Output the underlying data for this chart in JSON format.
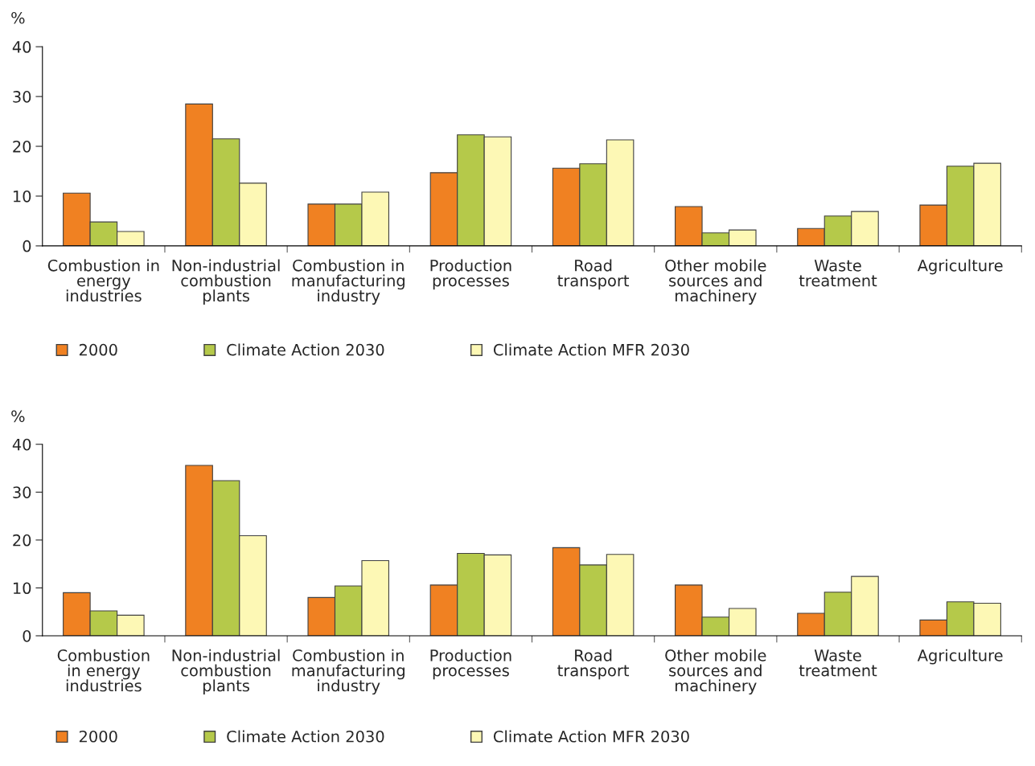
{
  "chart_data": [
    {
      "type": "bar",
      "ylabel": "%",
      "categories": [
        "Combustion in\nenergy\nindustries",
        "Non-industrial\ncombustion\nplants",
        "Combustion in\nmanufacturing\nindustry",
        "Production\nprocesses",
        "Road\ntransport",
        "Other mobile\nsources and\nmachinery",
        "Waste\ntreatment",
        "Agriculture"
      ],
      "series": [
        {
          "name": "2000",
          "color": "#f08122",
          "values": [
            10.6,
            28.5,
            8.4,
            14.7,
            15.6,
            7.9,
            3.5,
            8.2
          ]
        },
        {
          "name": "Climate Action 2030",
          "color": "#b5c94a",
          "values": [
            4.8,
            21.5,
            8.4,
            22.3,
            16.5,
            2.6,
            6.0,
            16.0
          ]
        },
        {
          "name": "Climate Action MFR 2030",
          "color": "#fdf8b5",
          "values": [
            2.9,
            12.6,
            10.8,
            21.9,
            21.3,
            3.2,
            6.9,
            16.6
          ]
        }
      ],
      "ylim": [
        0,
        40
      ],
      "yticks": [
        0,
        10,
        20,
        30,
        40
      ],
      "grid": false,
      "legend": "bottom"
    },
    {
      "type": "bar",
      "ylabel": "%",
      "categories": [
        "Combustion\nin energy\nindustries",
        "Non-industrial\ncombustion\nplants",
        "Combustion in\nmanufacturing\nindustry",
        "Production\nprocesses",
        "Road\ntransport",
        "Other mobile\nsources and\nmachinery",
        "Waste\ntreatment",
        "Agriculture"
      ],
      "series": [
        {
          "name": "2000",
          "color": "#f08122",
          "values": [
            9.0,
            35.6,
            8.0,
            10.6,
            18.4,
            10.6,
            4.7,
            3.3
          ]
        },
        {
          "name": "Climate Action 2030",
          "color": "#b5c94a",
          "values": [
            5.2,
            32.4,
            10.4,
            17.2,
            14.8,
            3.9,
            9.1,
            7.1
          ]
        },
        {
          "name": "Climate Action MFR 2030",
          "color": "#fdf8b5",
          "values": [
            4.3,
            20.9,
            15.7,
            16.9,
            17.0,
            5.7,
            12.4,
            6.8
          ]
        }
      ],
      "ylim": [
        0,
        40
      ],
      "yticks": [
        0,
        10,
        20,
        30,
        40
      ],
      "grid": false,
      "legend": "bottom"
    }
  ]
}
